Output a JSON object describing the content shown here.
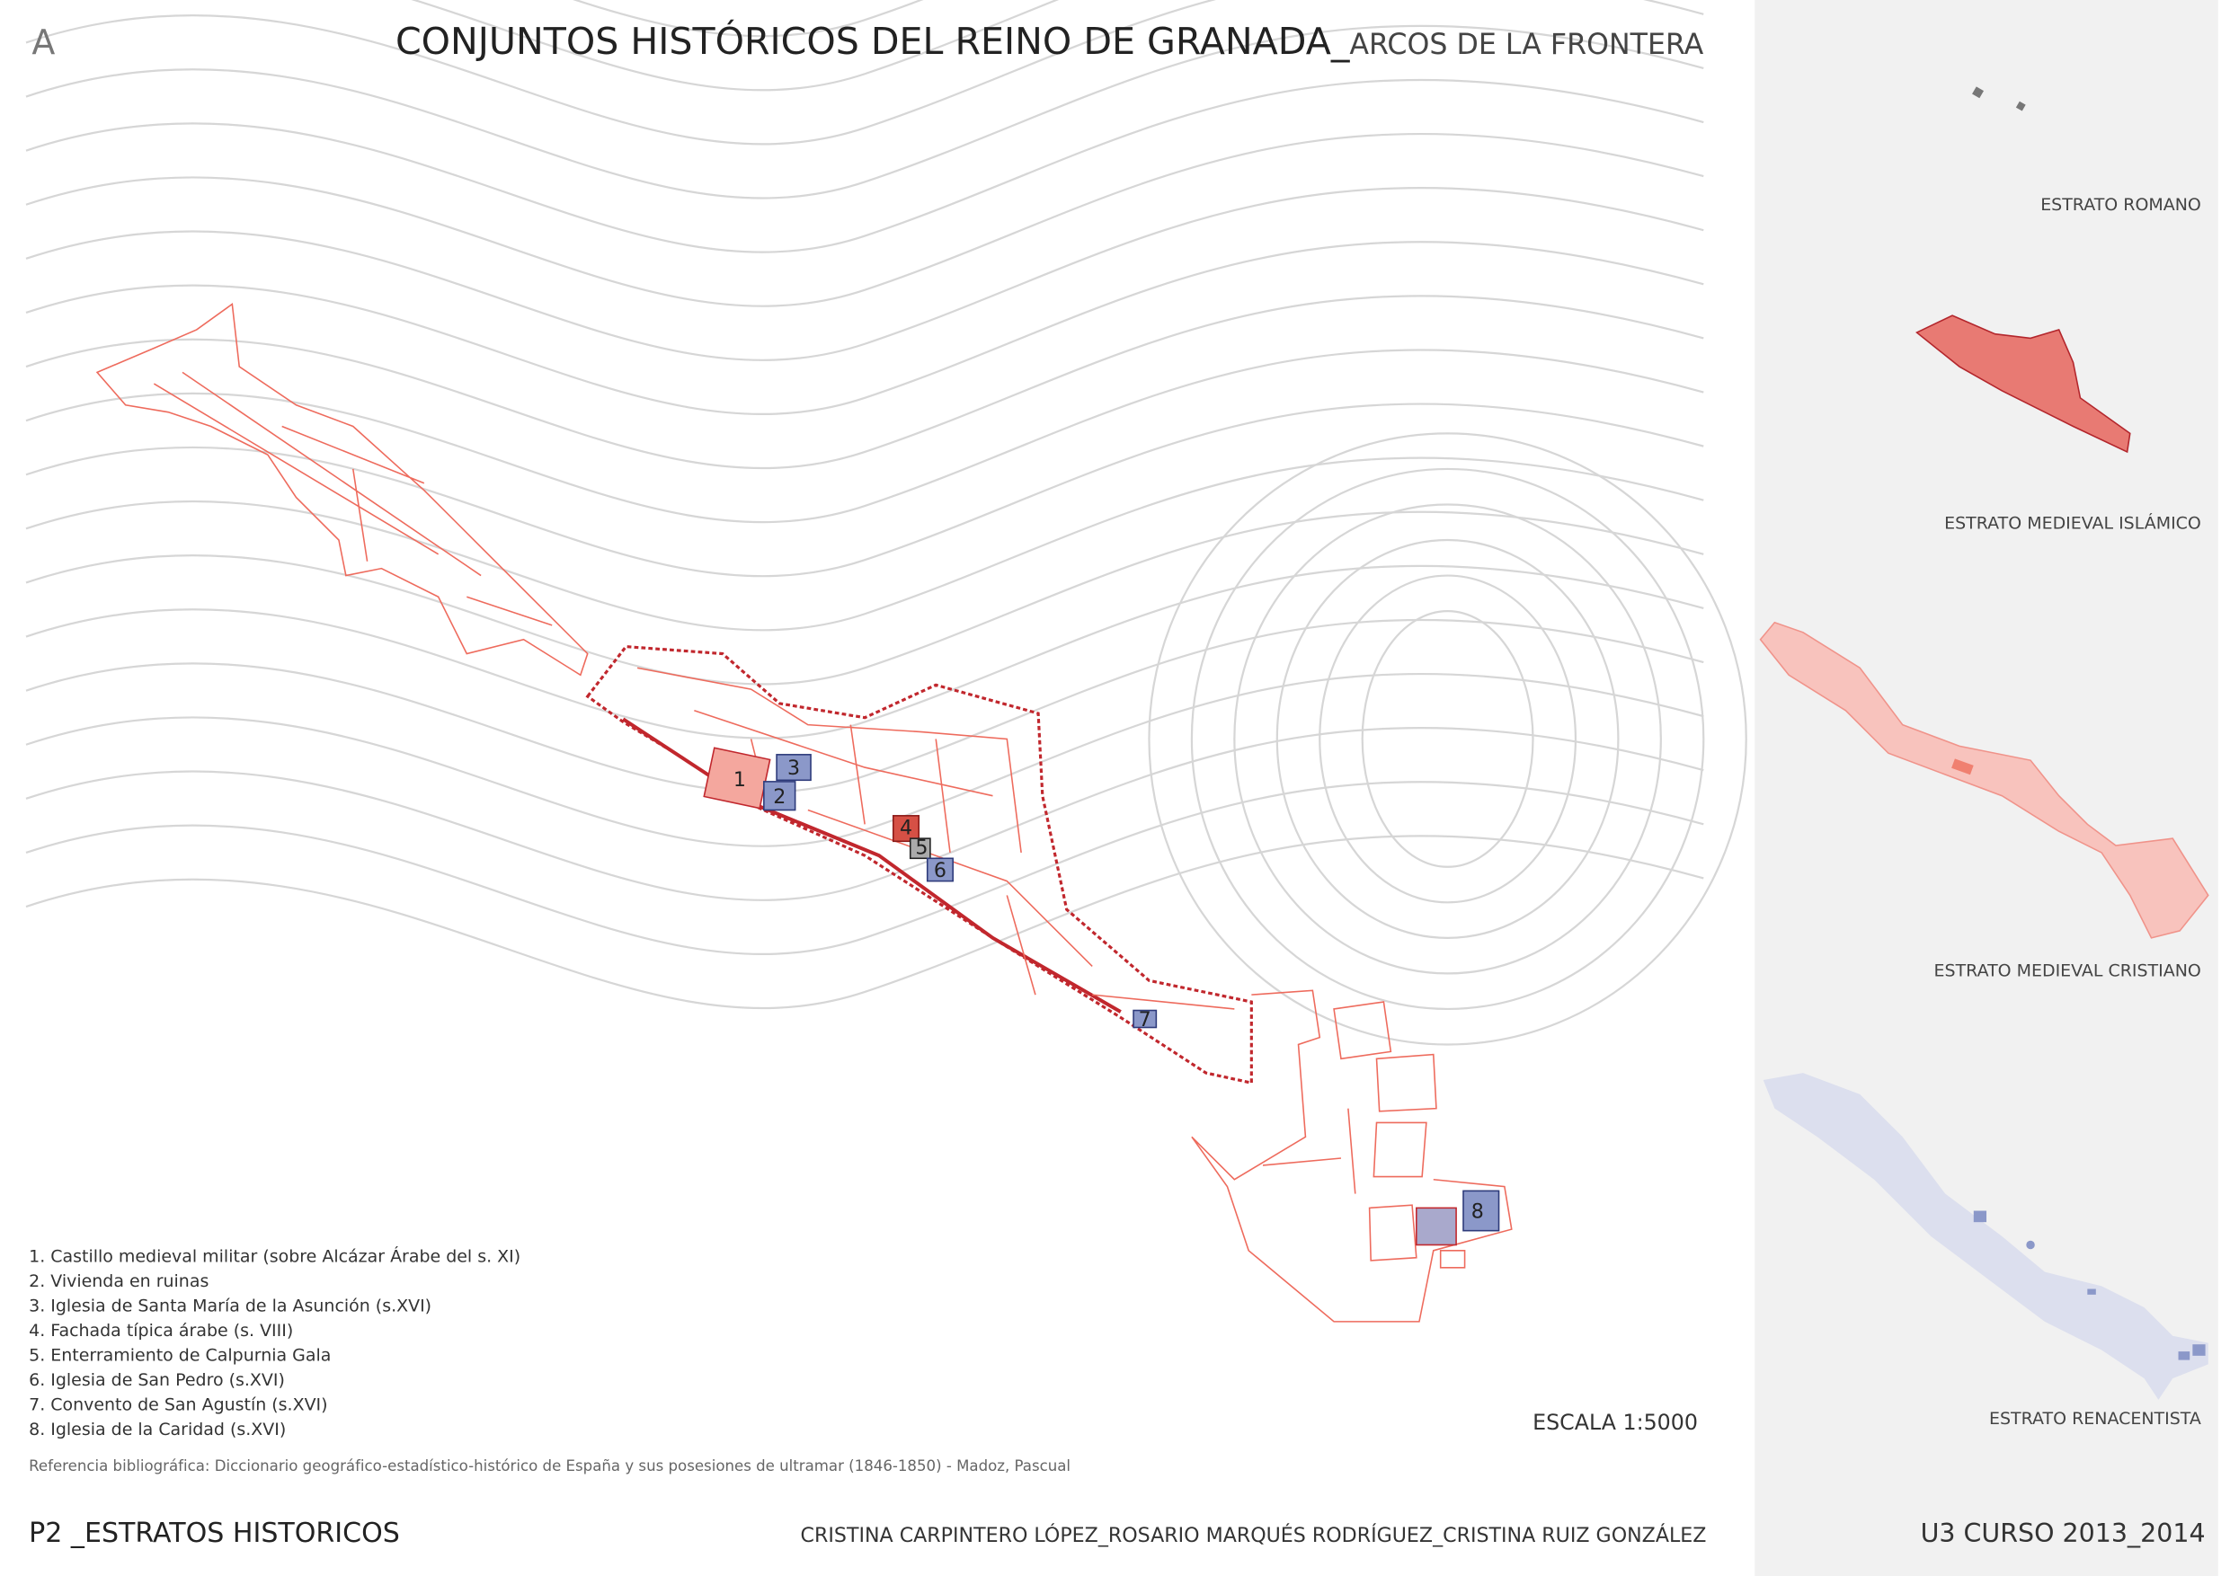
{
  "header": {
    "letter": "A",
    "title": "CONJUNTOS HISTÓRICOS DEL REINO DE GRANADA_",
    "subtitle": "ARCOS DE LA FRONTERA"
  },
  "map": {
    "markers": [
      "1",
      "2",
      "3",
      "4",
      "5",
      "6",
      "7",
      "8"
    ],
    "scale": "ESCALA 1:5000"
  },
  "legend": {
    "items": [
      "1. Castillo medieval militar (sobre Alcázar Árabe del s. XI)",
      "2. Vivienda en ruinas",
      "3. Iglesia de Santa María de la Asunción (s.XVI)",
      "4. Fachada típica árabe (s. VIII)",
      "5. Enterramiento de Calpurnia Gala",
      "6. Iglesia de San Pedro (s.XVI)",
      "7. Convento de San Agustín (s.XVI)",
      "8. Iglesia de la Caridad (s.XVI)"
    ]
  },
  "reference": "Referencia bibliográfica: Diccionario geográfico-estadístico-histórico de España y sus posesiones de ultramar (1846-1850) - Madoz, Pascual",
  "footer": {
    "left": "P2 _ESTRATOS HISTORICOS",
    "center": "CRISTINA CARPINTERO LÓPEZ_ROSARIO MARQUÉS RODRÍGUEZ_CRISTINA RUIZ GONZÁLEZ",
    "right": "U3 CURSO 2013_2014"
  },
  "sidebar": {
    "strata": [
      "ESTRATO ROMANO",
      "ESTRATO MEDIEVAL ISLÁMICO",
      "ESTRATO MEDIEVAL CRISTIANO",
      "ESTRATO RENACENTISTA"
    ]
  }
}
